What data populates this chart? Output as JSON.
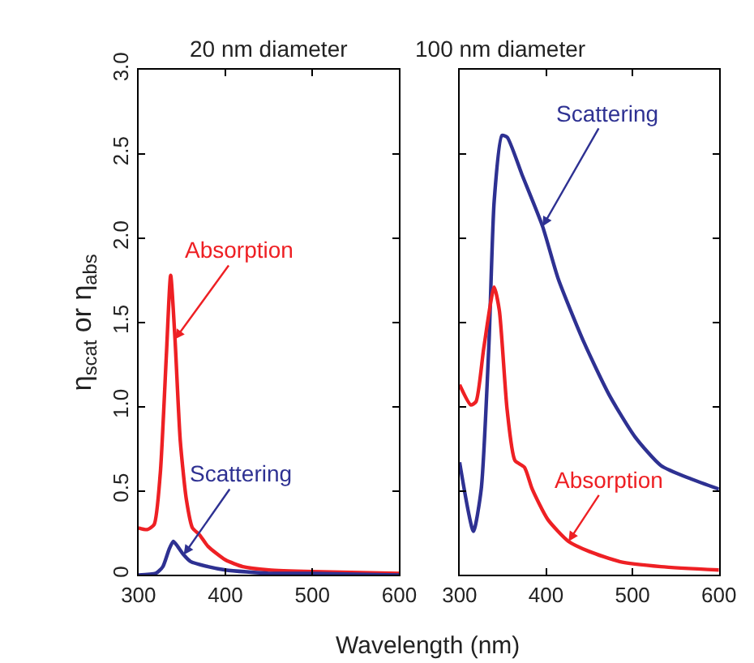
{
  "chart_data": [
    {
      "type": "line",
      "title": "20 nm diameter",
      "ylabel": "η$_{scat}$ or η$_{abs}$",
      "xlabel": "Wavelength (nm)",
      "xlim": [
        300,
        600
      ],
      "xticks": [
        300,
        400,
        500,
        600
      ],
      "ylim": [
        0,
        3
      ],
      "yticks": [
        0,
        0.5,
        {
          "value": 1,
          "label": "1.0"
        },
        1.5,
        {
          "value": 2,
          "label": "2.0"
        },
        2.5,
        {
          "value": 3,
          "label": "3.0"
        }
      ],
      "line_style": "solid",
      "series": [
        {
          "color": "#ee2024",
          "x": [
            300,
            310,
            318,
            325,
            332,
            337,
            342,
            348,
            355,
            362,
            370,
            380,
            400,
            420,
            450,
            500,
            600
          ],
          "values": [
            0.28,
            0.27,
            0.3,
            0.6,
            1.3,
            1.78,
            1.4,
            0.8,
            0.45,
            0.28,
            0.24,
            0.17,
            0.09,
            0.05,
            0.03,
            0.02,
            0.01
          ]
        },
        {
          "color": "#2e3192",
          "x": [
            300,
            320,
            328,
            335,
            340,
            345,
            352,
            360,
            380,
            400,
            450,
            500,
            600
          ],
          "values": [
            0,
            0.01,
            0.05,
            0.15,
            0.2,
            0.17,
            0.12,
            0.08,
            0.05,
            0.03,
            0.01,
            0.01,
            0
          ]
        }
      ],
      "annotations": [
        {
          "text": "Absorption",
          "x": 342,
          "y": 1.4
        },
        {
          "text": "Scattering",
          "x": 352,
          "y": 0.12
        }
      ]
    },
    {
      "type": "line",
      "title": "100 nm diameter",
      "tick_labels": "x",
      "xlim": [
        300,
        600
      ],
      "xticks": [
        300,
        400,
        500,
        600
      ],
      "ylim": [
        0,
        3
      ],
      "yticks": [
        0,
        0.5,
        1,
        1.5,
        2,
        2.5,
        3
      ],
      "line_style": "solid",
      "series": [
        {
          "color": "#2e3192",
          "x": [
            300,
            316,
            325,
            334,
            340,
            349,
            355,
            372,
            396,
            414,
            444,
            473,
            503,
            533,
            568,
            600
          ],
          "values": [
            0.67,
            0.26,
            0.51,
            1.38,
            2.22,
            2.61,
            2.6,
            2.38,
            2.07,
            1.76,
            1.38,
            1.07,
            0.82,
            0.65,
            0.57,
            0.51
          ]
        },
        {
          "color": "#ee2024",
          "x": [
            300,
            313,
            319,
            328,
            340,
            346,
            355,
            364,
            375,
            384,
            402,
            426,
            450,
            485,
            533,
            600
          ],
          "values": [
            1.13,
            1.01,
            1.03,
            1.35,
            1.71,
            1.57,
            0.98,
            0.68,
            0.64,
            0.51,
            0.33,
            0.2,
            0.14,
            0.08,
            0.05,
            0.03
          ]
        }
      ],
      "annotations": [
        {
          "text": "Scattering",
          "x": 396,
          "y": 2.07
        },
        {
          "text": "Absorption",
          "x": 426,
          "y": 0.2
        }
      ]
    }
  ]
}
